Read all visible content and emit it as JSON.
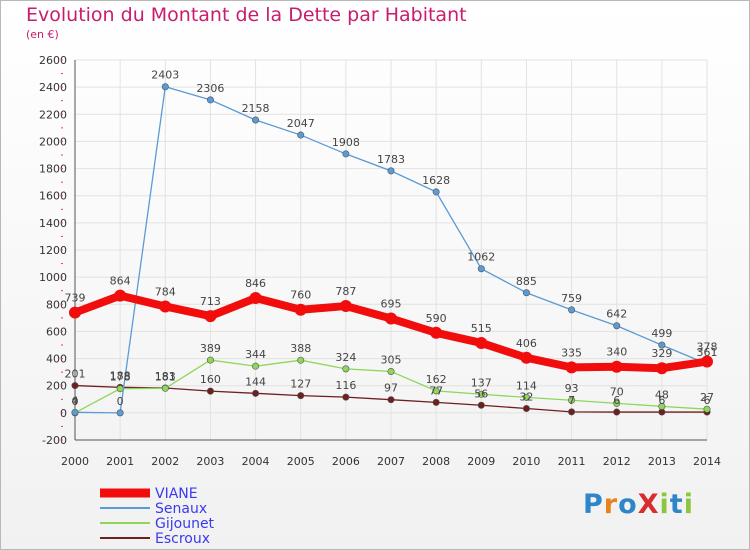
{
  "title": "Evolution du Montant de la Dette par Habitant",
  "subtitle": "(en €)",
  "logo": {
    "text": "ProXiti",
    "colors": [
      "#2e86c8",
      "#e8831c",
      "#2e86c8",
      "#d62d2d",
      "#8cc63f",
      "#2e86c8",
      "#8cc63f"
    ]
  },
  "chart_data": {
    "type": "line",
    "x": [
      2000,
      2001,
      2002,
      2003,
      2004,
      2005,
      2006,
      2007,
      2008,
      2009,
      2010,
      2011,
      2012,
      2013,
      2014
    ],
    "ylim": [
      -200,
      2600
    ],
    "yticks": [
      -200,
      0,
      200,
      400,
      600,
      800,
      1000,
      1200,
      1400,
      1600,
      1800,
      2000,
      2200,
      2400,
      2600
    ],
    "grid": true,
    "legend_position": "bottom-left",
    "series": [
      {
        "name": "Escroux",
        "color": "#6e1f1f",
        "values": [
          201,
          188,
          183,
          160,
          144,
          127,
          116,
          97,
          77,
          56,
          32,
          7,
          6,
          6,
          6
        ]
      },
      {
        "name": "Gijounet",
        "color": "#8fd65a",
        "values": [
          0,
          178,
          181,
          389,
          344,
          388,
          324,
          305,
          162,
          137,
          114,
          93,
          70,
          48,
          27
        ]
      },
      {
        "name": "Senaux",
        "color": "#5b9bd5",
        "values": [
          4,
          0,
          2403,
          2306,
          2158,
          2047,
          1908,
          1783,
          1628,
          1062,
          885,
          759,
          642,
          499,
          361
        ]
      },
      {
        "name": "VIANE",
        "color": "#f20d0d",
        "values": [
          739,
          864,
          784,
          713,
          846,
          760,
          787,
          695,
          590,
          515,
          406,
          335,
          340,
          329,
          378
        ]
      }
    ]
  }
}
